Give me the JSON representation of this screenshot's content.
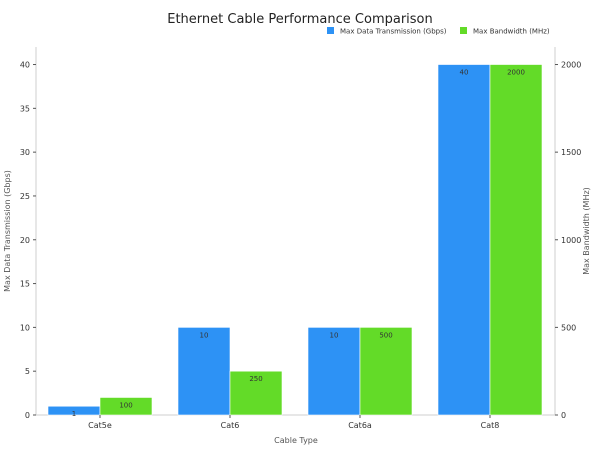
{
  "chart_data": {
    "type": "bar",
    "title": "Ethernet Cable Performance Comparison",
    "xlabel": "Cable Type",
    "categories": [
      "Cat5e",
      "Cat6",
      "Cat6a",
      "Cat8"
    ],
    "series": [
      {
        "name": "Max Data Transmission (Gbps)",
        "axis": "left",
        "color": "#2d92f5",
        "values": [
          1,
          10,
          10,
          40
        ],
        "labels": [
          "1",
          "10",
          "10",
          "40"
        ]
      },
      {
        "name": "Max Bandwidth (MHz)",
        "axis": "right",
        "color": "#63db28",
        "values": [
          100,
          250,
          500,
          2000
        ],
        "labels": [
          "100",
          "250",
          "500",
          "2000"
        ]
      }
    ],
    "y_left": {
      "label": "Max Data Transmission (Gbps)",
      "range": [
        0,
        42
      ],
      "ticks": [
        0,
        5,
        10,
        15,
        20,
        25,
        30,
        35,
        40
      ]
    },
    "y_right": {
      "label": "Max Bandwidth (MHz)",
      "range": [
        0,
        2100
      ],
      "ticks": [
        0,
        500,
        1000,
        1500,
        2000
      ]
    },
    "legend": "top-right",
    "grid": false
  }
}
